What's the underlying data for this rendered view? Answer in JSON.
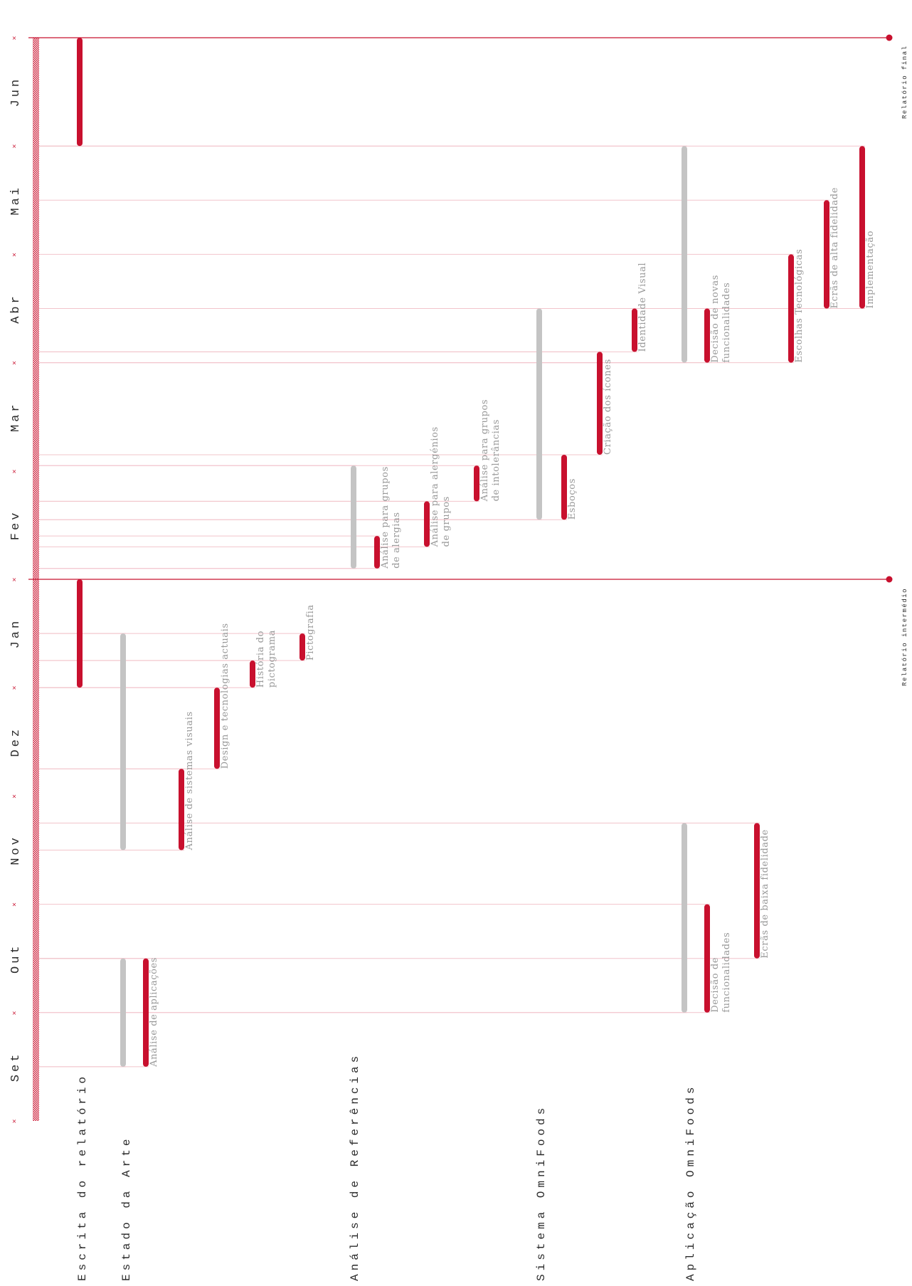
{
  "chart_data": {
    "type": "gantt",
    "orientation": "rotated: time runs bottom (Set) to top (Jun)",
    "time_axis": {
      "months": [
        "Set",
        "Out",
        "Nov",
        "Dez",
        "Jan",
        "Fev",
        "Mar",
        "Abr",
        "Mai",
        "Jun"
      ],
      "range": [
        0,
        10
      ]
    },
    "categories": [
      "Escrita do relatório",
      "Estado da Arte",
      "Análise de Referências",
      "Sistema OmniFoods",
      "Aplicação OmniFoods"
    ],
    "milestones": [
      {
        "label": "Relatório intermédio",
        "t": 5.0
      },
      {
        "label": "Relatório final",
        "t": 10.0
      }
    ],
    "tasks": [
      {
        "category": "Escrita do relatório",
        "label": "",
        "start": 4.0,
        "end": 5.0,
        "kind": "task"
      },
      {
        "category": "Escrita do relatório",
        "label": "",
        "start": 9.0,
        "end": 10.0,
        "kind": "task"
      },
      {
        "category": "Estado da Arte",
        "label": "",
        "start": 0.5,
        "end": 1.5,
        "kind": "phase"
      },
      {
        "category": "Estado da Arte",
        "label": "Análise de aplicações",
        "start": 0.5,
        "end": 1.5,
        "kind": "task"
      },
      {
        "category": "Estado da Arte",
        "label": "",
        "start": 2.5,
        "end": 4.5,
        "kind": "phase"
      },
      {
        "category": "Estado da Arte",
        "label": "Análise de sistemas visuais",
        "start": 2.5,
        "end": 3.25,
        "kind": "task"
      },
      {
        "category": "Estado da Arte",
        "label": "Design e tecnologias actuais",
        "start": 3.25,
        "end": 4.0,
        "kind": "task"
      },
      {
        "category": "Estado da Arte",
        "label": "História do pictograma",
        "start": 4.0,
        "end": 4.25,
        "kind": "task"
      },
      {
        "category": "Estado da Arte",
        "label": "Pictografia",
        "start": 4.25,
        "end": 4.5,
        "kind": "task"
      },
      {
        "category": "Análise de Referências",
        "label": "",
        "start": 5.1,
        "end": 6.05,
        "kind": "phase"
      },
      {
        "category": "Análise de Referências",
        "label": "Análise para grupos de alergias",
        "start": 5.1,
        "end": 5.4,
        "kind": "task"
      },
      {
        "category": "Análise de Referências",
        "label": "Análise para alergénios de grupos",
        "start": 5.3,
        "end": 5.72,
        "kind": "task"
      },
      {
        "category": "Análise de Referências",
        "label": "Análise para grupos de intolerâncias",
        "start": 5.72,
        "end": 6.05,
        "kind": "task"
      },
      {
        "category": "Sistema OmniFoods",
        "label": "",
        "start": 5.55,
        "end": 7.5,
        "kind": "phase"
      },
      {
        "category": "Sistema OmniFoods",
        "label": "Esboços",
        "start": 5.55,
        "end": 6.15,
        "kind": "task"
      },
      {
        "category": "Sistema OmniFoods",
        "label": "Criação dos ícones",
        "start": 6.15,
        "end": 7.1,
        "kind": "task"
      },
      {
        "category": "Sistema OmniFoods",
        "label": "Identidade Visual",
        "start": 7.1,
        "end": 7.5,
        "kind": "task"
      },
      {
        "category": "Aplicação OmniFoods",
        "label": "",
        "start": 1.0,
        "end": 2.75,
        "kind": "phase"
      },
      {
        "category": "Aplicação OmniFoods",
        "label": "Decisão de funcionalidades",
        "start": 1.0,
        "end": 2.0,
        "kind": "task"
      },
      {
        "category": "Aplicação OmniFoods",
        "label": "Ecrãs de baixa fidelidade",
        "start": 1.5,
        "end": 2.75,
        "kind": "task"
      },
      {
        "category": "Aplicação OmniFoods",
        "label": "",
        "start": 7.0,
        "end": 9.0,
        "kind": "phase"
      },
      {
        "category": "Aplicação OmniFoods",
        "label": "Decisão de novas funcionalidades",
        "start": 7.0,
        "end": 7.5,
        "kind": "task"
      },
      {
        "category": "Aplicação OmniFoods",
        "label": "Escolhas Tecnológicas",
        "start": 7.0,
        "end": 8.0,
        "kind": "task"
      },
      {
        "category": "Aplicação OmniFoods",
        "label": "Ecrãs de alta fidelidade",
        "start": 7.5,
        "end": 8.5,
        "kind": "task"
      },
      {
        "category": "Aplicação OmniFoods",
        "label": "Implementação",
        "start": 7.5,
        "end": 9.0,
        "kind": "task"
      }
    ],
    "colors": {
      "task": "#c8102e",
      "phase": "#c4c4c4",
      "guide": "#f2c4cb",
      "tick": "#c8102e",
      "milestone": "#c8102e",
      "text": "#2a2a2a",
      "task_text": "#9a9a9a"
    }
  }
}
